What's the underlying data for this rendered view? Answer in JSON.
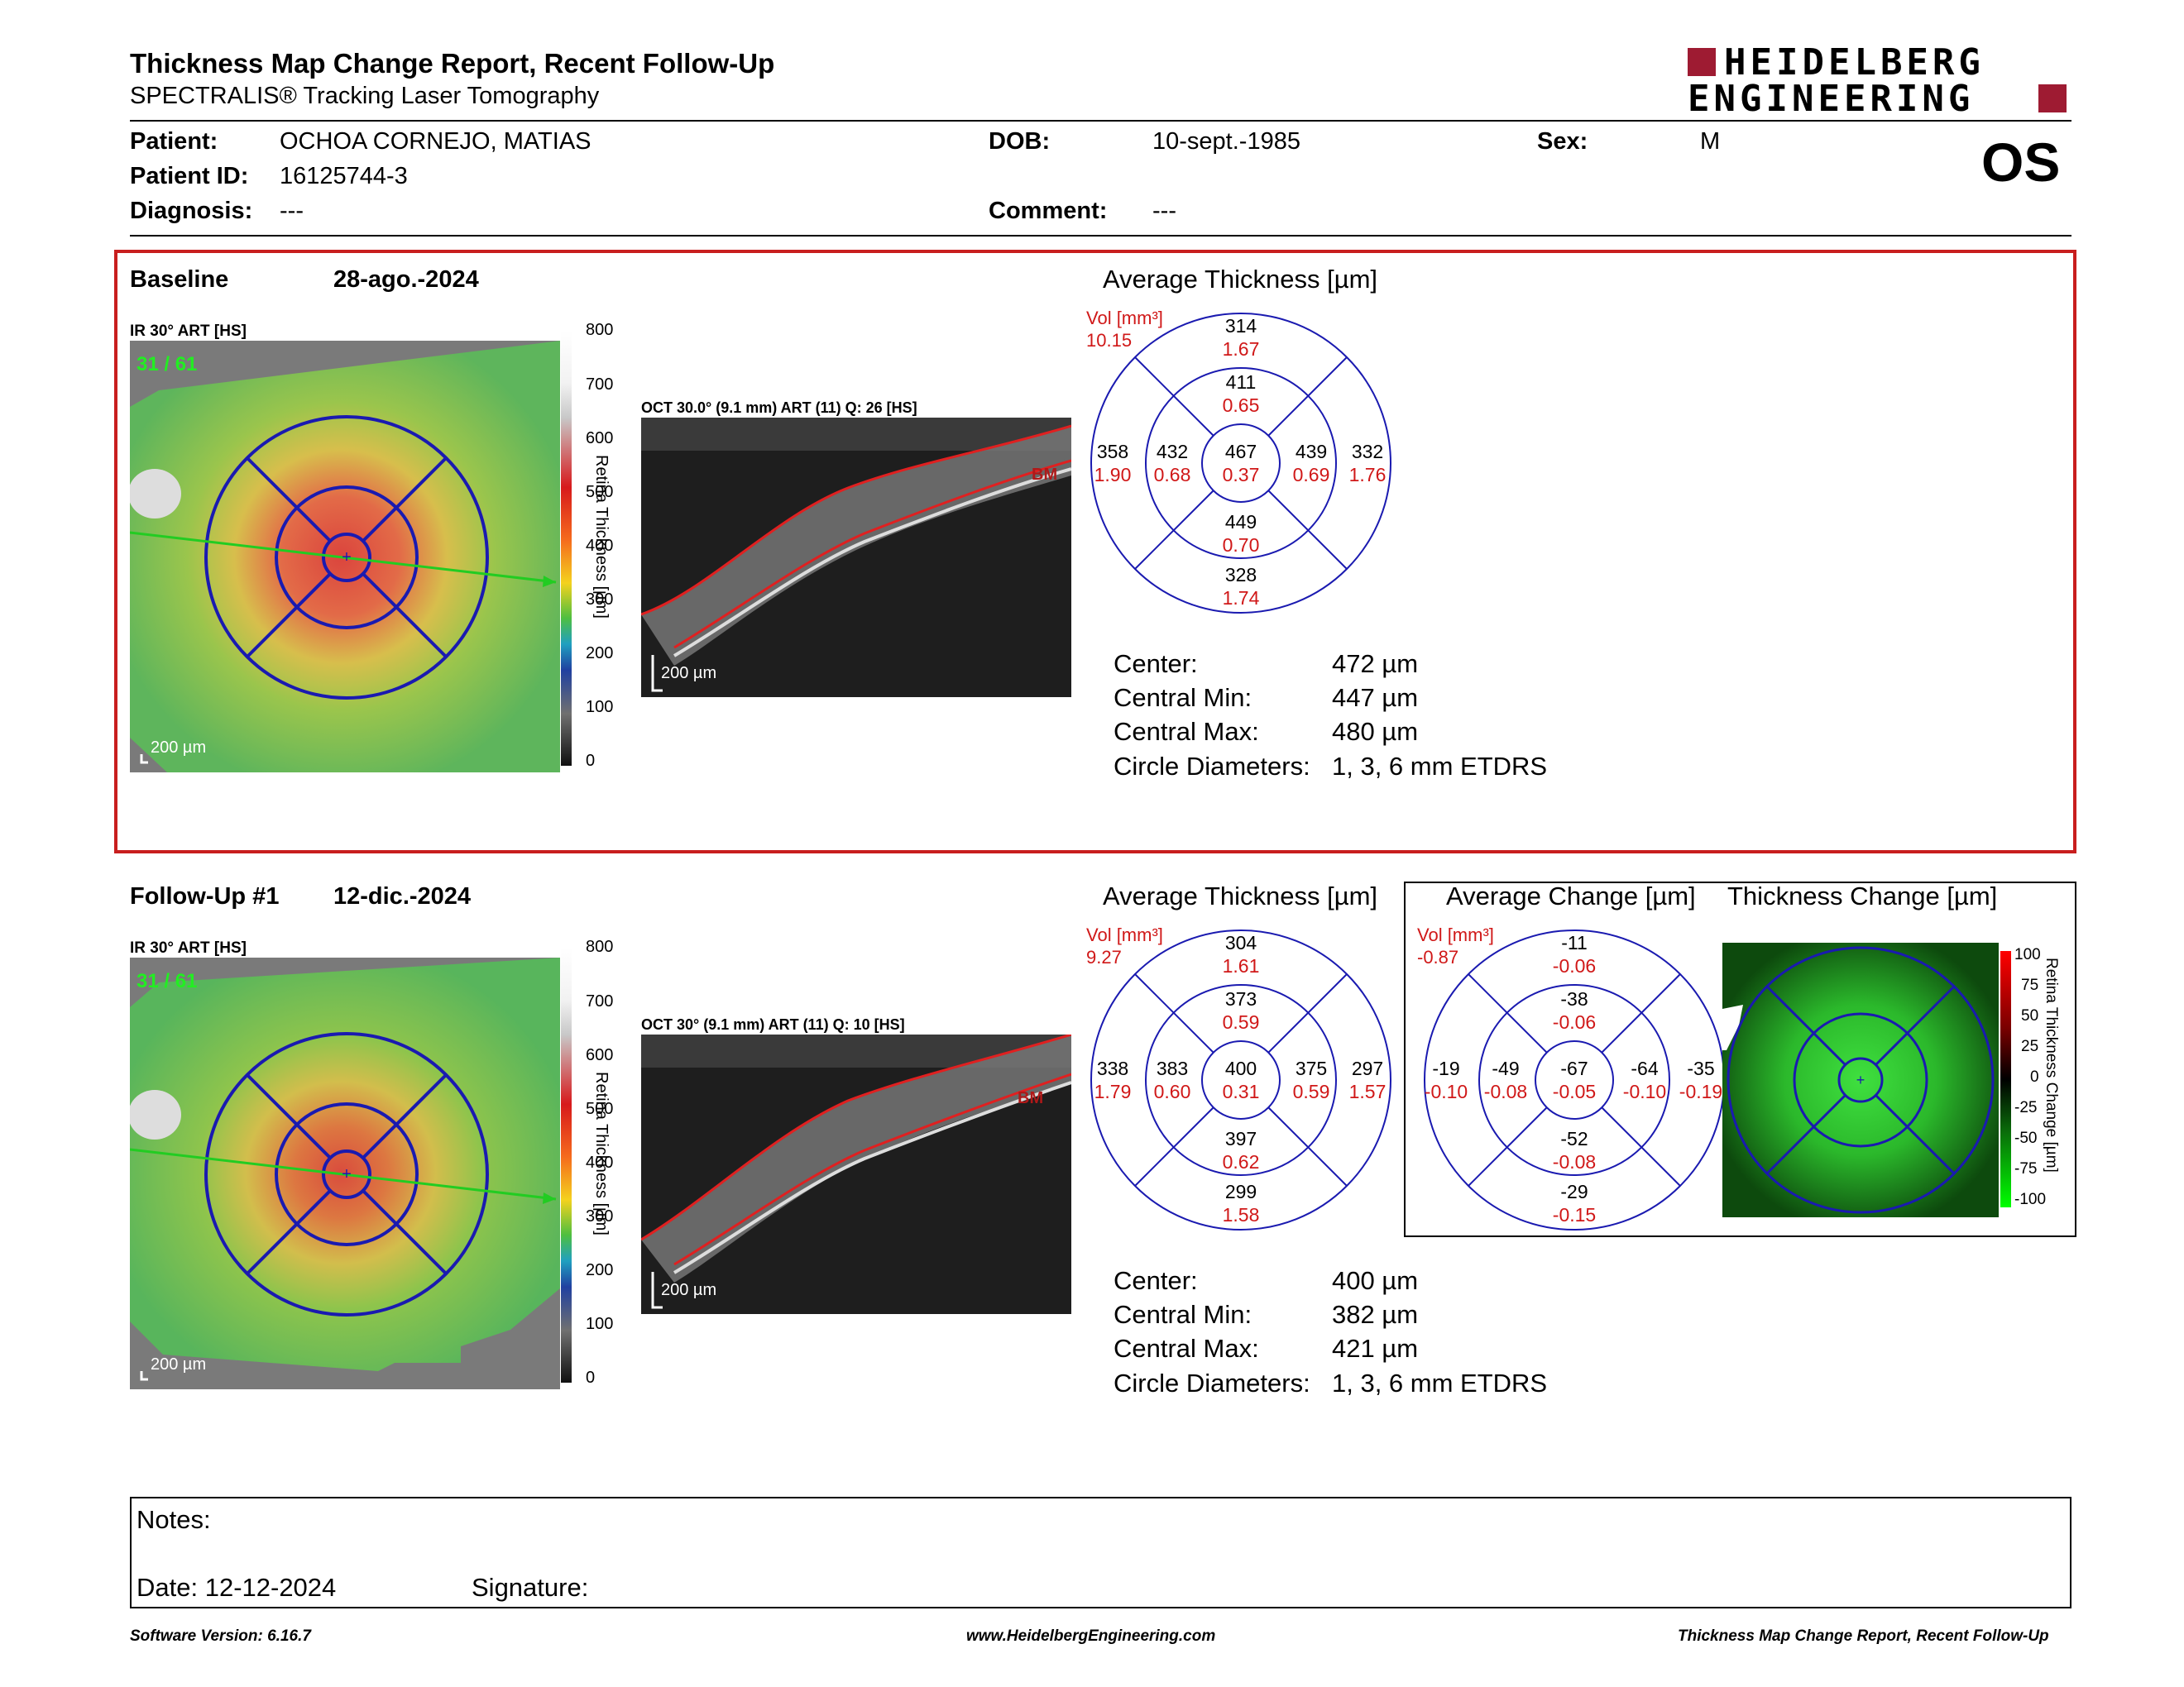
{
  "header": {
    "title": "Thickness Map Change Report, Recent Follow-Up",
    "subtitle": "SPECTRALIS® Tracking Laser Tomography",
    "logo_line1": "HEIDELBERG",
    "logo_line2": "ENGINEERING",
    "eye": "OS"
  },
  "patient": {
    "patient_label": "Patient:",
    "patient": "OCHOA CORNEJO, MATIAS",
    "id_label": "Patient ID:",
    "id": "16125744-3",
    "diag_label": "Diagnosis:",
    "diag": "---",
    "dob_label": "DOB:",
    "dob": "10-sept.-1985",
    "comment_label": "Comment:",
    "comment": "---",
    "sex_label": "Sex:",
    "sex": "M"
  },
  "baseline": {
    "label": "Baseline",
    "date": "28-ago.-2024",
    "ir_label": "IR 30° ART [HS]",
    "counter": "31 / 61",
    "scale": "200 µm",
    "oct_label": "OCT 30.0° (9.1 mm) ART (11) Q: 26 [HS]",
    "oct_scale": "200 µm",
    "bm": "BM",
    "avg_title": "Average Thickness [µm]",
    "vol_label": "Vol [mm³]",
    "vol": "10.15",
    "sectors": {
      "outer_sup": [
        "314",
        "1.67"
      ],
      "inner_sup": [
        "411",
        "0.65"
      ],
      "outer_nas": [
        "358",
        "1.90"
      ],
      "inner_nas": [
        "432",
        "0.68"
      ],
      "center": [
        "467",
        "0.37"
      ],
      "inner_tem": [
        "439",
        "0.69"
      ],
      "outer_tem": [
        "332",
        "1.76"
      ],
      "inner_inf": [
        "449",
        "0.70"
      ],
      "outer_inf": [
        "328",
        "1.74"
      ]
    },
    "stats": [
      [
        "Center:",
        "472 µm"
      ],
      [
        "Central Min:",
        "447 µm"
      ],
      [
        "Central Max:",
        "480 µm"
      ],
      [
        "Circle Diameters:",
        "1, 3, 6 mm ETDRS"
      ]
    ]
  },
  "followup": {
    "label": "Follow-Up #1",
    "date": "12-dic.-2024",
    "ir_label": "IR 30° ART [HS]",
    "counter": "31 / 61",
    "scale": "200 µm",
    "oct_label": "OCT 30° (9.1 mm) ART (11) Q: 10 [HS]",
    "oct_scale": "200 µm",
    "bm": "BM",
    "avg_title": "Average Thickness [µm]",
    "vol_label": "Vol [mm³]",
    "vol": "9.27",
    "sectors": {
      "outer_sup": [
        "304",
        "1.61"
      ],
      "inner_sup": [
        "373",
        "0.59"
      ],
      "outer_nas": [
        "338",
        "1.79"
      ],
      "inner_nas": [
        "383",
        "0.60"
      ],
      "center": [
        "400",
        "0.31"
      ],
      "inner_tem": [
        "375",
        "0.59"
      ],
      "outer_tem": [
        "297",
        "1.57"
      ],
      "inner_inf": [
        "397",
        "0.62"
      ],
      "outer_inf": [
        "299",
        "1.58"
      ]
    },
    "stats": [
      [
        "Center:",
        "400 µm"
      ],
      [
        "Central Min:",
        "382 µm"
      ],
      [
        "Central Max:",
        "421 µm"
      ],
      [
        "Circle Diameters:",
        "1, 3, 6 mm ETDRS"
      ]
    ],
    "change_title": "Average Change [µm]",
    "change_vol": "-0.87",
    "tc_title": "Thickness Change [µm]",
    "tc_axis": "Retina Thickness Change [µm]",
    "change": {
      "outer_sup": [
        "-11",
        "-0.06"
      ],
      "inner_sup": [
        "-38",
        "-0.06"
      ],
      "outer_nas": [
        "-19",
        "-0.10"
      ],
      "inner_nas": [
        "-49",
        "-0.08"
      ],
      "center": [
        "-67",
        "-0.05"
      ],
      "inner_tem": [
        "-64",
        "-0.10"
      ],
      "outer_tem": [
        "-35",
        "-0.19"
      ],
      "inner_inf": [
        "-52",
        "-0.08"
      ],
      "outer_inf": [
        "-29",
        "-0.15"
      ]
    },
    "tc_ticks": [
      "100",
      "75",
      "50",
      "25",
      "0",
      "-25",
      "-50",
      "-75",
      "-100"
    ]
  },
  "colorbar": {
    "ticks": [
      "800",
      "700",
      "600",
      "500",
      "400",
      "300",
      "200",
      "100",
      "0"
    ],
    "axis": "Retina Thickness [µm]"
  },
  "footer": {
    "notes": "Notes:",
    "date": "Date: 12-12-2024",
    "signature": "Signature:",
    "version": "Software Version: 6.16.7",
    "web": "www.HeidelbergEngineering.com",
    "report": "Thickness Map Change Report, Recent Follow-Up"
  }
}
